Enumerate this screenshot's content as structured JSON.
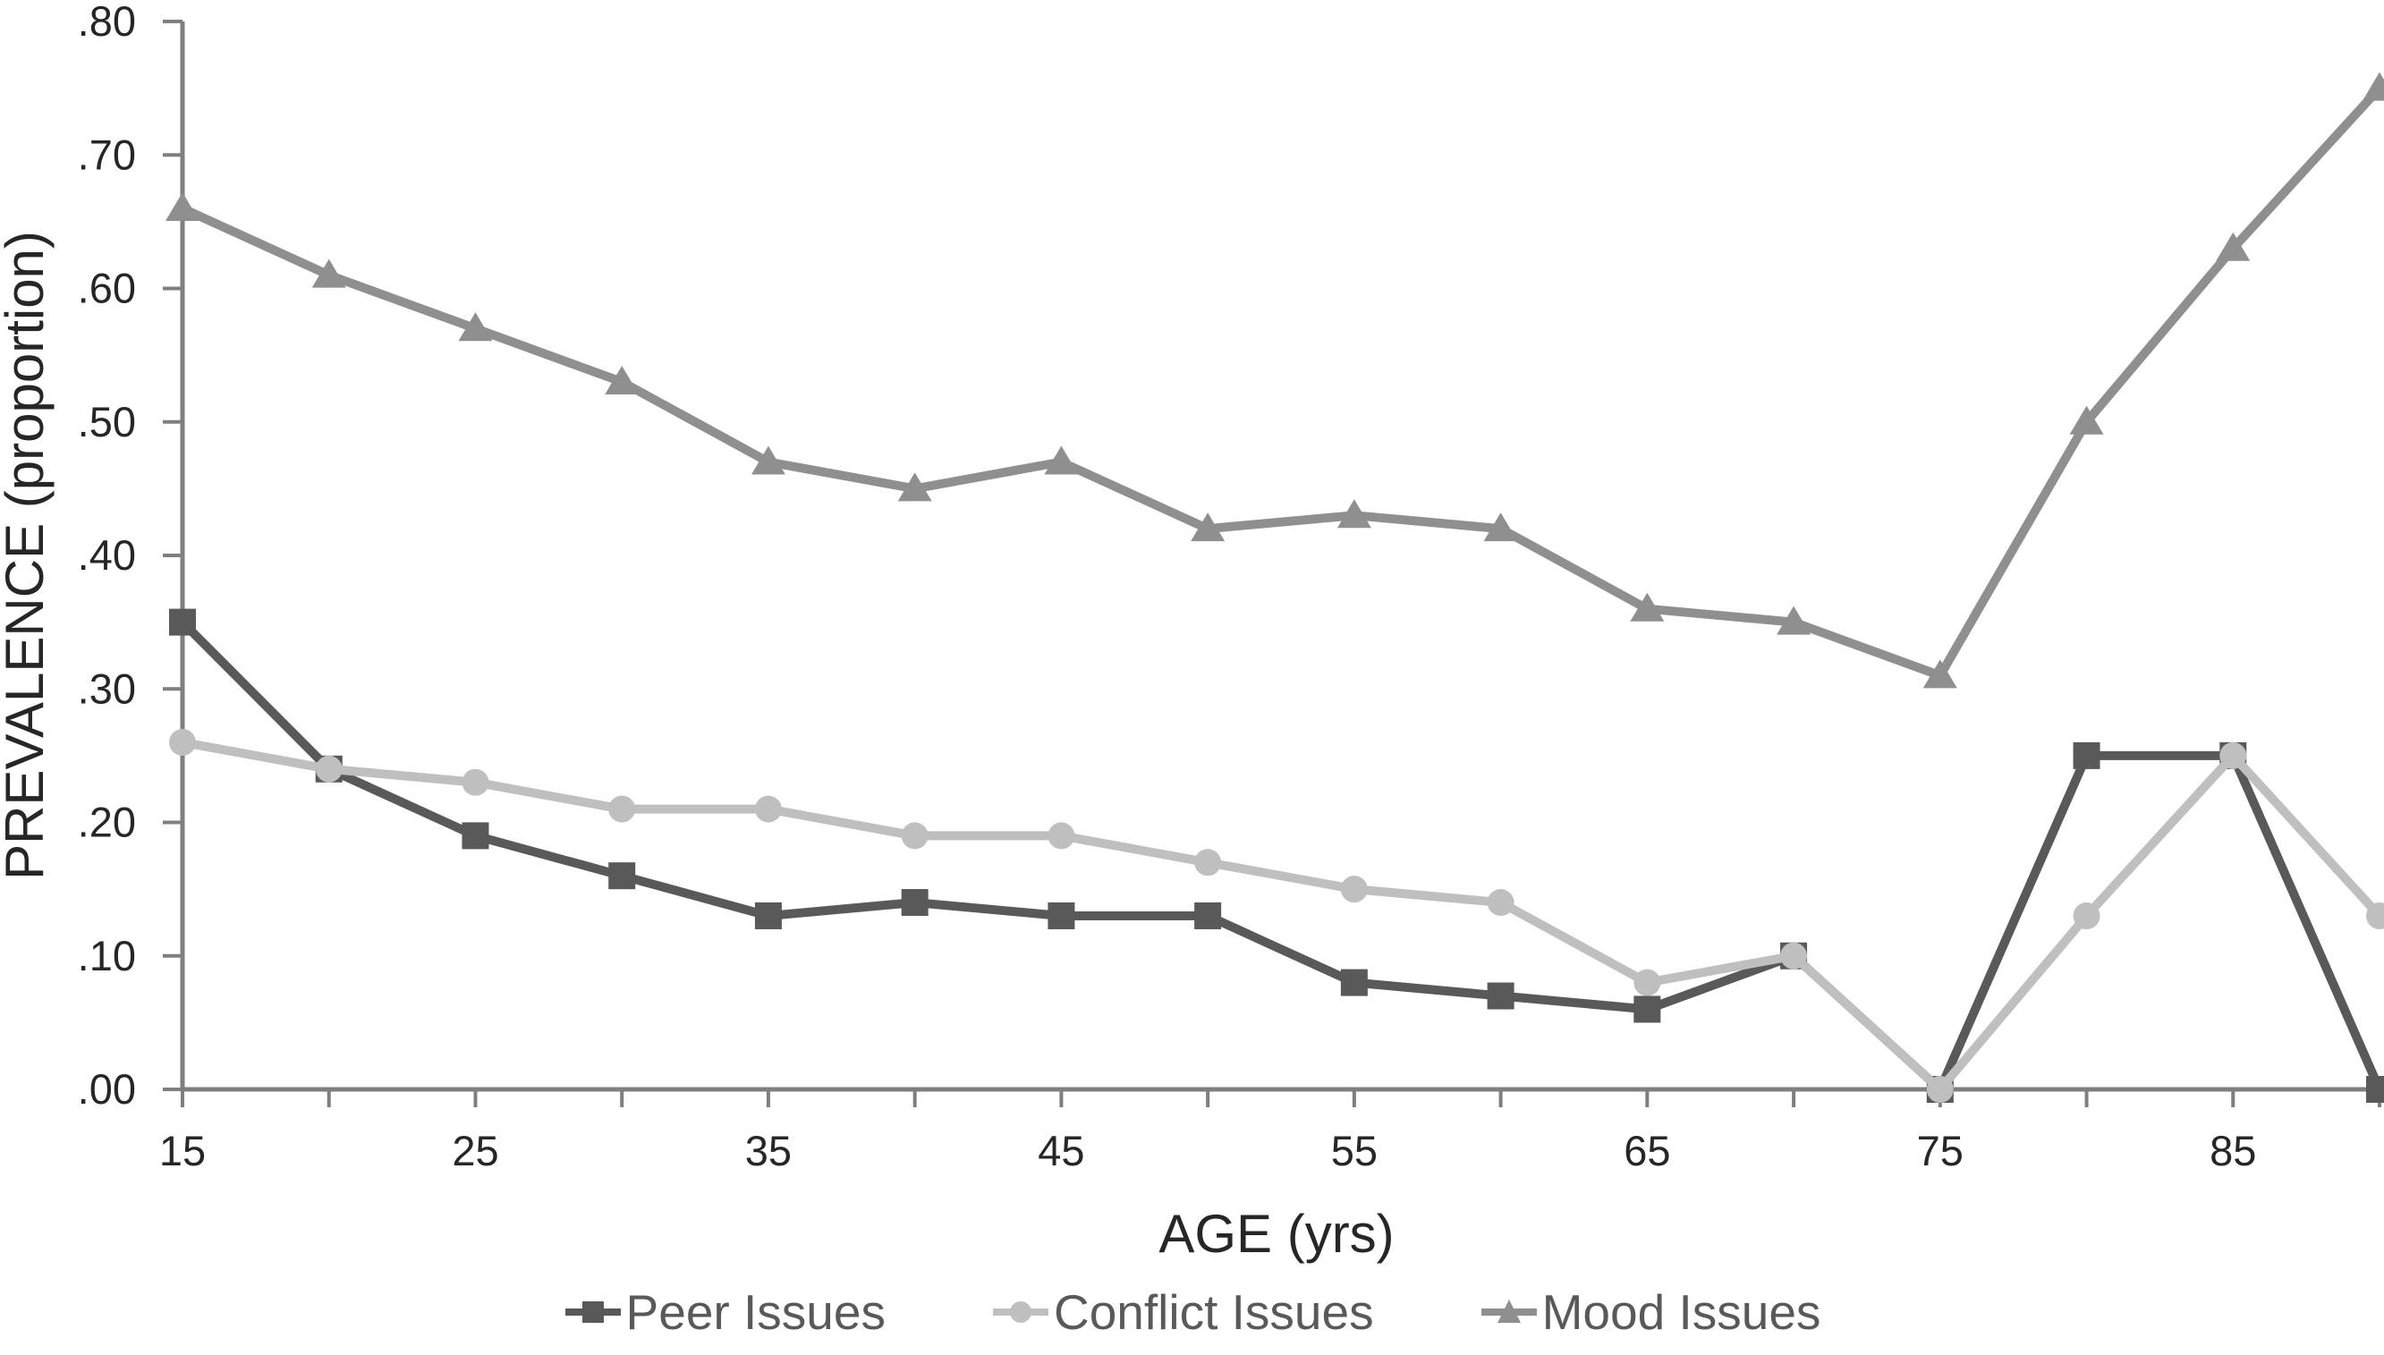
{
  "figure": {
    "y_axis": {
      "title": "PREVALENCE (proportion)",
      "tick_labels": [
        ".00",
        ".10",
        ".20",
        ".30",
        ".40",
        ".50",
        ".60",
        ".70",
        ".80"
      ],
      "min": 0,
      "max": 0.8,
      "step": 0.1
    },
    "x_axis": {
      "title": "AGE (yrs)",
      "min": 15,
      "max": 90,
      "tick_step": 5,
      "labeled_ticks": [
        15,
        25,
        35,
        45,
        55,
        65,
        75,
        85
      ]
    },
    "legend_entries": [
      "Peer Issues",
      "Conflict Issues",
      "Mood Issues"
    ]
  },
  "chart_data": {
    "type": "line",
    "title": "",
    "xlabel": "AGE (yrs)",
    "ylabel": "PREVALENCE (proportion)",
    "xlim": [
      15,
      90
    ],
    "ylim": [
      0,
      0.8
    ],
    "grid": false,
    "legend_position": "bottom",
    "x": [
      15,
      20,
      25,
      30,
      35,
      40,
      45,
      50,
      55,
      60,
      65,
      70,
      75,
      80,
      85,
      90
    ],
    "series": [
      {
        "name": "Peer Issues",
        "marker": "square",
        "color": "#595959",
        "values": [
          0.35,
          0.24,
          0.19,
          0.16,
          0.13,
          0.14,
          0.13,
          0.13,
          0.08,
          0.07,
          0.06,
          0.1,
          0.0,
          0.25,
          0.25,
          0.0
        ]
      },
      {
        "name": "Conflict Issues",
        "marker": "circle",
        "color": "#BFBFBF",
        "values": [
          0.26,
          0.24,
          0.23,
          0.21,
          0.21,
          0.19,
          0.19,
          0.17,
          0.15,
          0.14,
          0.08,
          0.1,
          0.0,
          0.13,
          0.25,
          0.13
        ]
      },
      {
        "name": "Mood Issues",
        "marker": "triangle",
        "color": "#8F8F8F",
        "values": [
          0.66,
          0.61,
          0.57,
          0.53,
          0.47,
          0.45,
          0.47,
          0.42,
          0.43,
          0.42,
          0.36,
          0.35,
          0.31,
          0.5,
          0.63,
          0.75
        ]
      }
    ],
    "axis_color": "#7F7F7F",
    "text_color": "#262626",
    "legend_text_color": "#595959"
  }
}
